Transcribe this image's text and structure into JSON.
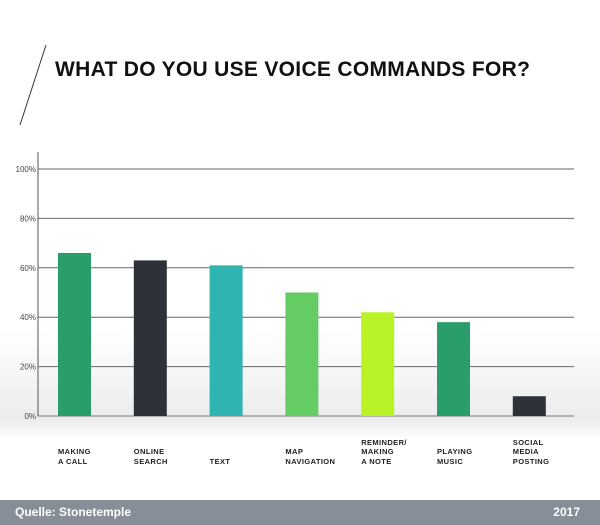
{
  "chart_data": {
    "type": "bar",
    "title": "WHAT DO YOU USE VOICE COMMANDS FOR?",
    "categories": [
      [
        "MAKING",
        "A CALL"
      ],
      [
        "ONLINE",
        "SEARCH"
      ],
      [
        "TEXT"
      ],
      [
        "MAP",
        "NAVIGATION"
      ],
      [
        "REMINDER/",
        "MAKING",
        "A NOTE"
      ],
      [
        "PLAYING",
        "MUSIC"
      ],
      [
        "SOCIAL",
        "MEDIA",
        "POSTING"
      ]
    ],
    "values": [
      66,
      63,
      61,
      50,
      42,
      38,
      8
    ],
    "colors": [
      "#2a9e6a",
      "#2d3239",
      "#2fb3b3",
      "#65cb63",
      "#b9f226",
      "#2a9e6a",
      "#2d3239"
    ],
    "yticks": [
      "0%",
      "20%",
      "40%",
      "60%",
      "80%",
      "100%"
    ],
    "ylim": [
      0,
      100
    ],
    "xlabel": "",
    "ylabel": "",
    "grid": true
  },
  "footer": {
    "source": "Quelle: Stonetemple",
    "year": "2017"
  }
}
